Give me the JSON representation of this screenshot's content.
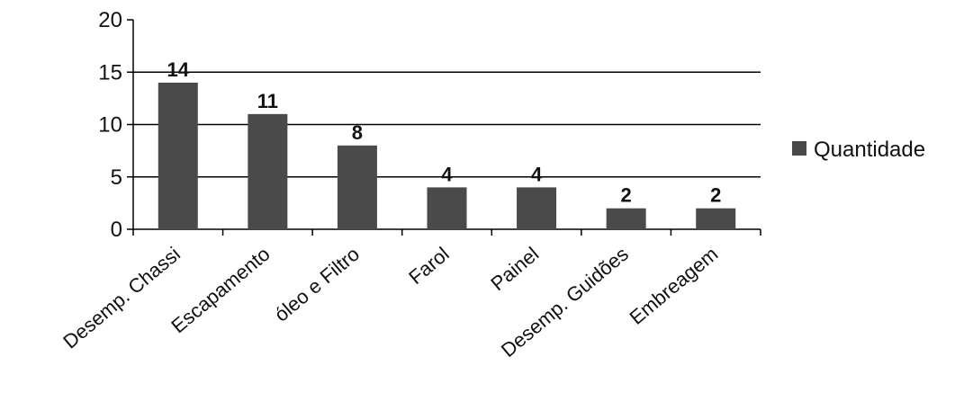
{
  "chart_data": {
    "type": "bar",
    "categories": [
      "Desemp. Chassi",
      "Escapamento",
      "óleo e Filtro",
      "Farol",
      "Painel",
      "Desemp. Guidões",
      "Embreagem"
    ],
    "series": [
      {
        "name": "Quantidade",
        "values": [
          14,
          11,
          8,
          4,
          4,
          2,
          2
        ],
        "color": "#4a4a4a"
      }
    ],
    "data_labels": [
      "14",
      "11",
      "8",
      "4",
      "4",
      "2",
      "2"
    ],
    "yticks": [
      "0",
      "5",
      "10",
      "15",
      "20"
    ],
    "ylim": [
      0,
      20
    ],
    "grid": true,
    "legend_position": "right",
    "title": "",
    "xlabel": "",
    "ylabel": ""
  }
}
